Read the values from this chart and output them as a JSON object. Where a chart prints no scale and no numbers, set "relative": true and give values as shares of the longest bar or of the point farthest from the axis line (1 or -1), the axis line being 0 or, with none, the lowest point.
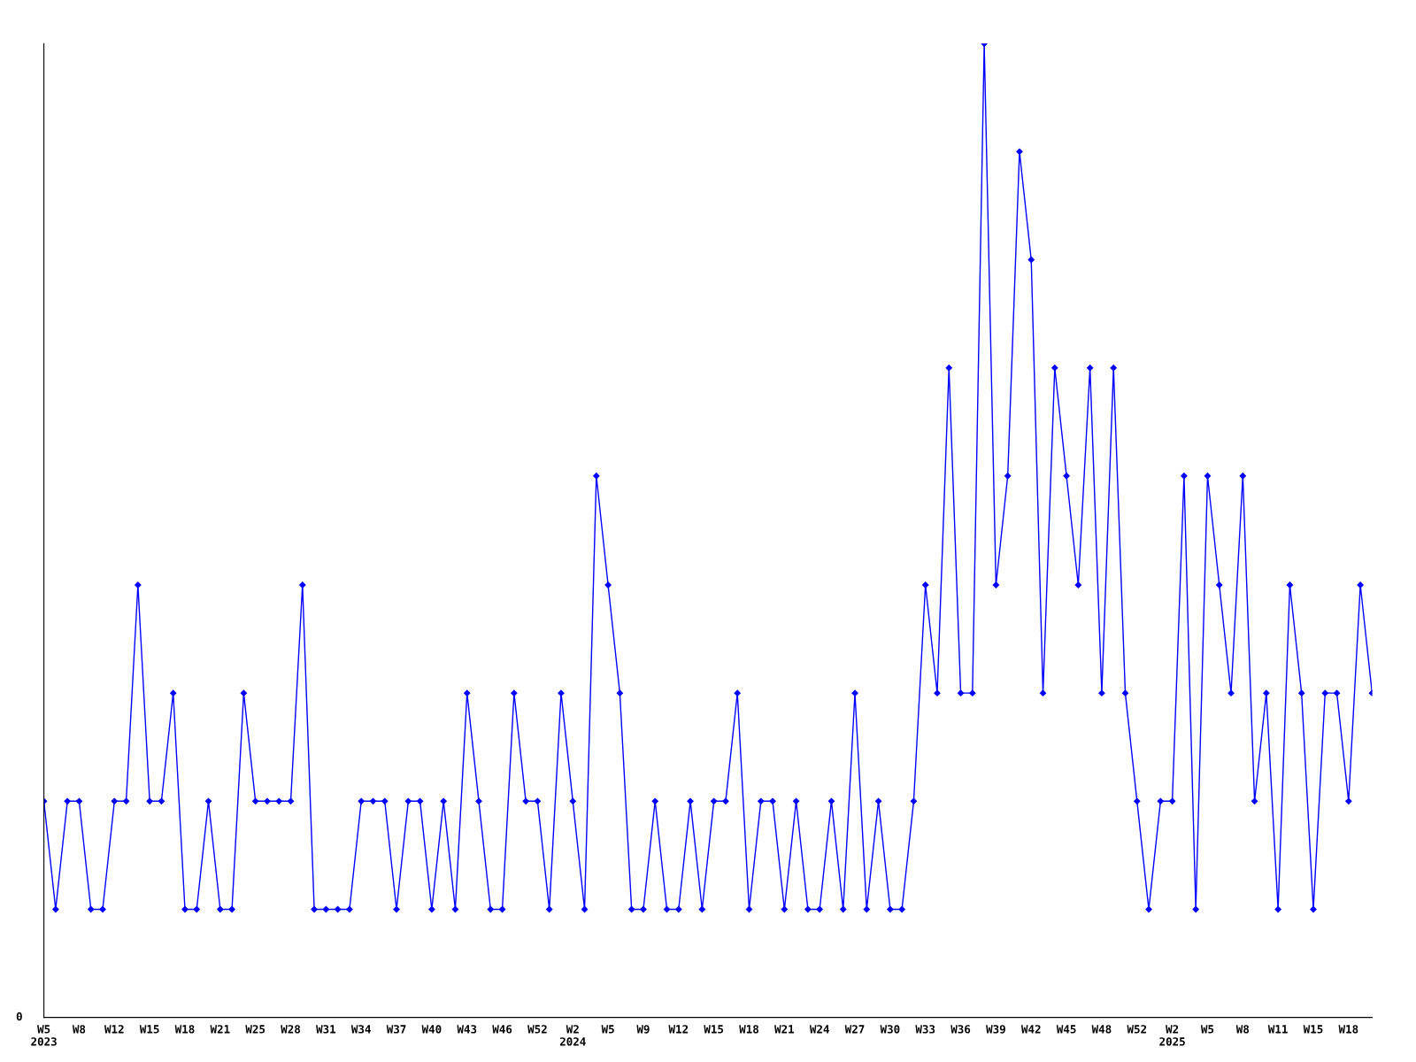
{
  "chart_data": {
    "type": "line",
    "relative": true,
    "color": "#0000ff",
    "marker": "diamond",
    "line_style": "solid",
    "grid": false,
    "legend": false,
    "annotations": [
      "0"
    ],
    "categories": [
      "W5\n2023",
      null,
      null,
      "W8",
      null,
      null,
      "W12",
      null,
      null,
      "W15",
      null,
      null,
      "W18",
      null,
      null,
      "W21",
      null,
      null,
      "W25",
      null,
      null,
      "W28",
      null,
      null,
      "W31",
      null,
      null,
      "W34",
      null,
      null,
      "W37",
      null,
      null,
      "W40",
      null,
      null,
      "W43",
      null,
      null,
      "W46",
      null,
      null,
      "W52",
      null,
      null,
      "W2\n2024",
      null,
      null,
      "W5",
      null,
      null,
      "W9",
      null,
      null,
      "W12",
      null,
      null,
      "W15",
      null,
      null,
      "W18",
      null,
      null,
      "W21",
      null,
      null,
      "W24",
      null,
      null,
      "W27",
      null,
      null,
      "W30",
      null,
      null,
      "W33",
      null,
      null,
      "W36",
      null,
      null,
      "W39",
      null,
      null,
      "W42",
      null,
      null,
      "W45",
      null,
      null,
      "W48",
      null,
      null,
      "W52",
      null,
      null,
      "W2\n2025",
      null,
      null,
      "W5",
      null,
      null,
      "W8",
      null,
      null,
      "W11",
      null,
      null,
      "W15",
      null,
      null,
      "W18",
      null,
      null
    ],
    "values": [
      0.222,
      0.111,
      0.222,
      0.222,
      0.111,
      0.111,
      0.222,
      0.222,
      0.444,
      0.222,
      0.222,
      0.333,
      0.111,
      0.111,
      0.222,
      0.111,
      0.111,
      0.333,
      0.222,
      0.222,
      0.222,
      0.222,
      0.444,
      0.111,
      0.111,
      0.111,
      0.111,
      0.222,
      0.222,
      0.222,
      0.111,
      0.222,
      0.222,
      0.111,
      0.222,
      0.111,
      0.333,
      0.222,
      0.111,
      0.111,
      0.333,
      0.222,
      0.222,
      0.111,
      0.333,
      0.222,
      0.111,
      0.556,
      0.444,
      0.333,
      0.111,
      0.111,
      0.222,
      0.111,
      0.111,
      0.222,
      0.111,
      0.222,
      0.222,
      0.333,
      0.111,
      0.222,
      0.222,
      0.111,
      0.222,
      0.111,
      0.111,
      0.222,
      0.111,
      0.333,
      0.111,
      0.222,
      0.111,
      0.111,
      0.222,
      0.444,
      0.333,
      0.667,
      0.333,
      0.333,
      1,
      0.444,
      0.556,
      0.889,
      0.778,
      0.333,
      0.667,
      0.556,
      0.444,
      0.667,
      0.333,
      0.667,
      0.333,
      0.222,
      0.111,
      0.222,
      0.222,
      0.556,
      0.111,
      0.556,
      0.444,
      0.333,
      0.556,
      0.222,
      0.333,
      0.111,
      0.444,
      0.333,
      0.111,
      0.333,
      0.333,
      0.222,
      0.444,
      0.333
    ]
  }
}
